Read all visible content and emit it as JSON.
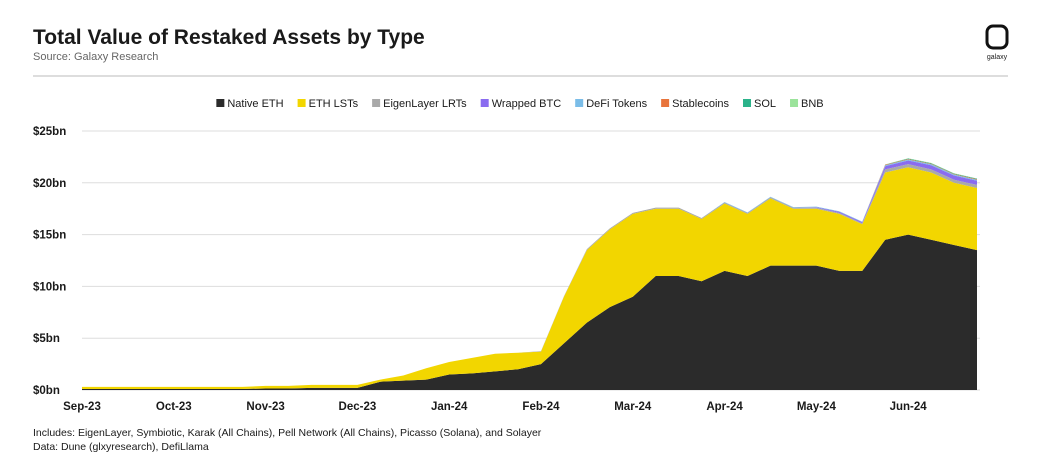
{
  "chart_data": {
    "type": "stacked-area",
    "title": "Total Value of Restaked Assets by Type",
    "subtitle": "Source: Galaxy Research",
    "logo_text": "galaxy",
    "notes": [
      "Includes: EigenLayer, Symbiotic, Karak (All Chains), Pell Network (All Chains), Picasso (Solana), and Solayer",
      "Data: Dune (glxyresearch), DefiLlama"
    ],
    "categories": [
      "Sep-23",
      null,
      null,
      null,
      "Oct-23",
      null,
      null,
      null,
      "Nov-23",
      null,
      null,
      null,
      "Dec-23",
      null,
      null,
      null,
      "Jan-24",
      null,
      null,
      null,
      "Feb-24",
      null,
      null,
      null,
      "Mar-24",
      null,
      null,
      null,
      "Apr-24",
      null,
      null,
      null,
      "May-24",
      null,
      null,
      null,
      "Jun-24",
      null,
      null,
      null
    ],
    "series": [
      {
        "name": "Native ETH",
        "color": "#2b2b2b",
        "values": [
          0.1,
          0.1,
          0.1,
          0.1,
          0.1,
          0.1,
          0.1,
          0.1,
          0.15,
          0.15,
          0.2,
          0.2,
          0.2,
          0.8,
          0.9,
          1.0,
          1.5,
          1.6,
          1.8,
          2.0,
          2.5,
          4.5,
          6.5,
          8,
          9,
          11,
          11,
          10.5,
          11.5,
          11,
          12,
          12,
          12,
          11.5,
          11.5,
          14.5,
          15,
          14.5,
          14,
          13.5
        ]
      },
      {
        "name": "ETH LSTs",
        "color": "#f2d600",
        "values": [
          0.2,
          0.2,
          0.2,
          0.2,
          0.2,
          0.2,
          0.2,
          0.2,
          0.25,
          0.25,
          0.3,
          0.3,
          0.3,
          0.2,
          0.5,
          1.1,
          1.2,
          1.5,
          1.7,
          1.6,
          1.2,
          4.5,
          7,
          7.5,
          8,
          6.5,
          6.5,
          6,
          6.5,
          6,
          6.5,
          5.5,
          5.5,
          5.5,
          4.5,
          6.5,
          6.5,
          6.5,
          6,
          6
        ]
      },
      {
        "name": "EigenLayer LRTs",
        "color": "#a9a9a9",
        "values": [
          0,
          0,
          0,
          0,
          0,
          0,
          0,
          0,
          0,
          0,
          0,
          0,
          0,
          0,
          0,
          0,
          0,
          0,
          0,
          0,
          0.05,
          0.05,
          0.1,
          0.1,
          0.1,
          0.1,
          0.1,
          0.1,
          0.1,
          0.1,
          0.1,
          0.1,
          0.1,
          0.1,
          0.1,
          0.3,
          0.3,
          0.3,
          0.3,
          0.3
        ]
      },
      {
        "name": "Wrapped BTC",
        "color": "#8a6cf0",
        "values": [
          0,
          0,
          0,
          0,
          0,
          0,
          0,
          0,
          0,
          0,
          0,
          0,
          0,
          0,
          0,
          0,
          0,
          0,
          0,
          0,
          0,
          0,
          0,
          0,
          0,
          0,
          0,
          0,
          0,
          0,
          0,
          0,
          0.05,
          0.1,
          0.1,
          0.3,
          0.35,
          0.4,
          0.4,
          0.4
        ]
      },
      {
        "name": "DeFi Tokens",
        "color": "#7bbde8",
        "values": [
          0,
          0,
          0,
          0,
          0,
          0,
          0,
          0,
          0,
          0,
          0,
          0,
          0,
          0,
          0,
          0,
          0,
          0,
          0,
          0,
          0,
          0,
          0,
          0,
          0,
          0,
          0,
          0,
          0.05,
          0.05,
          0.05,
          0.05,
          0.05,
          0.05,
          0.05,
          0.1,
          0.1,
          0.1,
          0.1,
          0.1
        ]
      },
      {
        "name": "Stablecoins",
        "color": "#e8743b",
        "values": [
          0,
          0,
          0,
          0,
          0,
          0,
          0,
          0,
          0,
          0,
          0,
          0,
          0,
          0,
          0,
          0,
          0,
          0,
          0,
          0,
          0,
          0,
          0,
          0,
          0,
          0,
          0,
          0,
          0,
          0,
          0,
          0,
          0,
          0,
          0,
          0.05,
          0.05,
          0.05,
          0.05,
          0.05
        ]
      },
      {
        "name": "SOL",
        "color": "#2bb38a",
        "values": [
          0,
          0,
          0,
          0,
          0,
          0,
          0,
          0,
          0,
          0,
          0,
          0,
          0,
          0,
          0,
          0,
          0,
          0,
          0,
          0,
          0,
          0,
          0,
          0,
          0,
          0,
          0,
          0,
          0,
          0,
          0,
          0,
          0,
          0,
          0,
          0.02,
          0.05,
          0.05,
          0.05,
          0.05
        ]
      },
      {
        "name": "BNB",
        "color": "#9be39b",
        "values": [
          0,
          0,
          0,
          0,
          0,
          0,
          0,
          0,
          0,
          0,
          0,
          0,
          0,
          0,
          0,
          0,
          0,
          0,
          0,
          0,
          0,
          0,
          0,
          0,
          0,
          0,
          0,
          0,
          0,
          0,
          0,
          0,
          0,
          0,
          0,
          0,
          0.02,
          0.02,
          0.02,
          0.02
        ]
      }
    ],
    "ylim": [
      0,
      25
    ],
    "yticks": [
      {
        "value": 0,
        "label": "$0bn"
      },
      {
        "value": 5,
        "label": "$5bn"
      },
      {
        "value": 10,
        "label": "$10bn"
      },
      {
        "value": 15,
        "label": "$15bn"
      },
      {
        "value": 20,
        "label": "$20bn"
      },
      {
        "value": 25,
        "label": "$25bn"
      }
    ],
    "grid": true
  }
}
